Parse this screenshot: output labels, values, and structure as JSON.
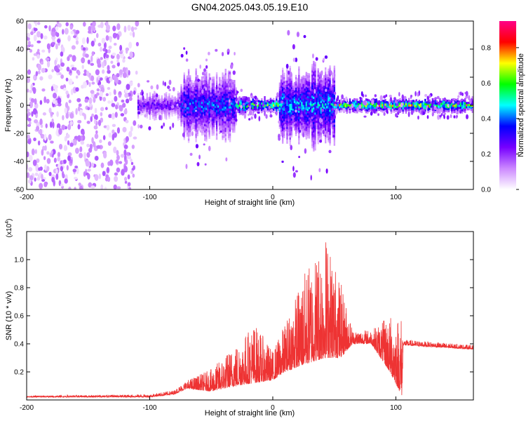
{
  "title": "GN04.2025.043.05.19.E10",
  "chart_data": [
    {
      "type": "heatmap",
      "xlabel": "Height of straight line (km)",
      "ylabel": "Frequency (Hz)",
      "xlim": [
        -200,
        163
      ],
      "ylim": [
        -60,
        60
      ],
      "x_ticks": [
        -200,
        -100,
        0,
        100
      ],
      "y_ticks": [
        -60,
        -40,
        -20,
        0,
        20,
        40,
        60
      ],
      "colorbar": {
        "label": "Normalized spectral amplitude",
        "range": [
          0,
          0.95
        ],
        "ticks": [
          0,
          0.2,
          0.4,
          0.6,
          0.8
        ],
        "colormap": [
          "#ffffff",
          "#cc88ff",
          "#7700ff",
          "#0000ff",
          "#00ffff",
          "#00ff00",
          "#ffff00",
          "#ff0000",
          "#ff0088"
        ]
      },
      "regions": [
        {
          "x_range": [
            -200,
            -110
          ],
          "description": "scattered low-amplitude noise across all frequencies",
          "amplitude": 0.12
        },
        {
          "x_range": [
            -110,
            -75
          ],
          "freq_half_width": 8,
          "amplitude": 0.25
        },
        {
          "x_range": [
            -75,
            -30
          ],
          "freq_half_width": 20,
          "amplitude": 0.35
        },
        {
          "x_range": [
            -30,
            5
          ],
          "freq_half_width": 5,
          "amplitude": 0.55
        },
        {
          "x_range": [
            5,
            50
          ],
          "freq_half_width": 25,
          "amplitude": 0.4
        },
        {
          "x_range": [
            50,
            163
          ],
          "freq_half_width": 4,
          "amplitude": 0.6
        }
      ]
    },
    {
      "type": "line",
      "xlabel": "Height of straight line (km)",
      "ylabel": "SNR (10 * v/v)",
      "y_multiplier": "(x10",
      "y_multiplier_exp": "4",
      "y_multiplier_close": ")",
      "xlim": [
        -200,
        163
      ],
      "ylim": [
        0,
        1.2
      ],
      "x_ticks": [
        -200,
        -100,
        0,
        100
      ],
      "y_ticks": [
        0.2,
        0.4,
        0.6,
        0.8,
        1.0
      ],
      "series": [
        {
          "color": "#ee3333",
          "envelope": [
            {
              "x": -200,
              "base": 0.02,
              "peak": 0.03
            },
            {
              "x": -100,
              "base": 0.02,
              "peak": 0.04
            },
            {
              "x": -80,
              "base": 0.04,
              "peak": 0.07
            },
            {
              "x": -70,
              "base": 0.08,
              "peak": 0.14
            },
            {
              "x": -50,
              "base": 0.06,
              "peak": 0.22
            },
            {
              "x": -30,
              "base": 0.1,
              "peak": 0.4
            },
            {
              "x": -15,
              "base": 0.12,
              "peak": 0.55
            },
            {
              "x": 0,
              "base": 0.14,
              "peak": 0.35
            },
            {
              "x": 10,
              "base": 0.2,
              "peak": 0.55
            },
            {
              "x": 25,
              "base": 0.25,
              "peak": 0.9
            },
            {
              "x": 43,
              "base": 0.3,
              "peak": 1.2
            },
            {
              "x": 55,
              "base": 0.3,
              "peak": 0.85
            },
            {
              "x": 65,
              "base": 0.4,
              "peak": 0.5
            },
            {
              "x": 80,
              "base": 0.4,
              "peak": 0.5
            },
            {
              "x": 95,
              "base": 0.2,
              "peak": 0.6
            },
            {
              "x": 105,
              "base": 0.03,
              "peak": 0.62
            },
            {
              "x": 106,
              "base": 0.39,
              "peak": 0.43
            },
            {
              "x": 163,
              "base": 0.36,
              "peak": 0.39
            }
          ]
        }
      ]
    }
  ]
}
